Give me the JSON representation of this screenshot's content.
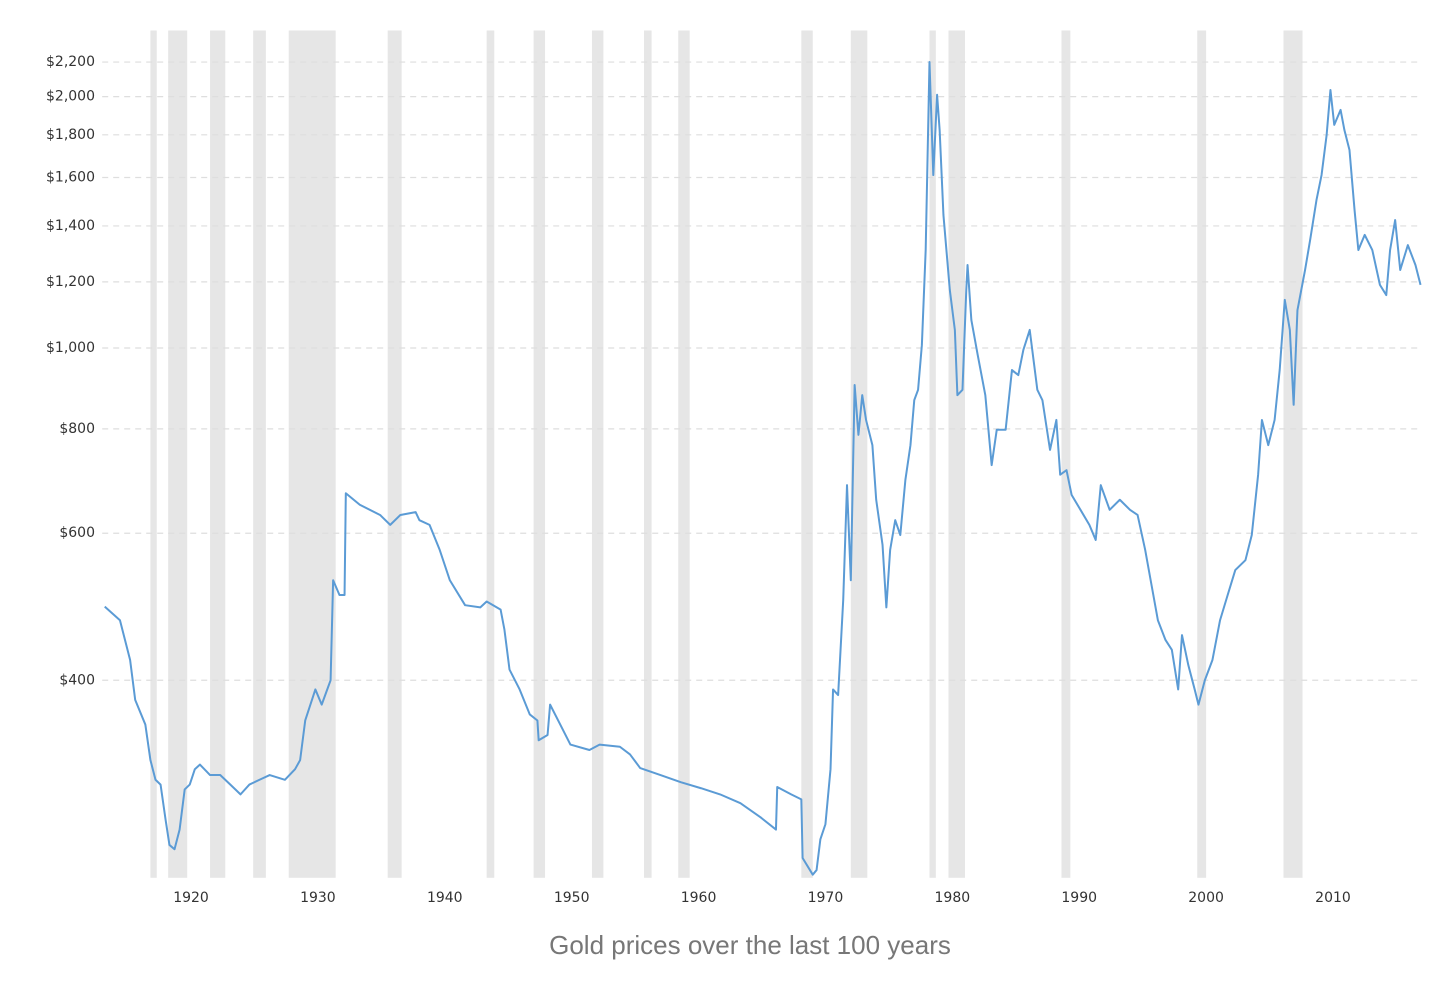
{
  "chart_data": {
    "type": "line",
    "title": "Gold prices over the last 100 years",
    "log_scale": true,
    "grid": true,
    "xlim": [
      1913,
      2017
    ],
    "ylim": [
      232,
      2400
    ],
    "xticks": [
      1920,
      1930,
      1940,
      1950,
      1960,
      1970,
      1980,
      1990,
      2000,
      2010
    ],
    "yticks": [
      {
        "value": 400,
        "label": "$400"
      },
      {
        "value": 600,
        "label": "$600"
      },
      {
        "value": 800,
        "label": "$800"
      },
      {
        "value": 1000,
        "label": "$1,000"
      },
      {
        "value": 1200,
        "label": "$1,200"
      },
      {
        "value": 1400,
        "label": "$1,400"
      },
      {
        "value": 1600,
        "label": "$1,600"
      },
      {
        "value": 1800,
        "label": "$1,800"
      },
      {
        "value": 2000,
        "label": "$2,000"
      },
      {
        "value": 2200,
        "label": "$2,200"
      }
    ],
    "shaded_periods": [
      [
        1916.8,
        1917.3
      ],
      [
        1918.2,
        1919.7
      ],
      [
        1921.5,
        1922.7
      ],
      [
        1924.9,
        1925.9
      ],
      [
        1927.7,
        1931.4
      ],
      [
        1935.5,
        1936.6
      ],
      [
        1943.3,
        1943.9
      ],
      [
        1947.0,
        1947.9
      ],
      [
        1951.6,
        1952.5
      ],
      [
        1955.7,
        1956.3
      ],
      [
        1958.4,
        1959.3
      ],
      [
        1968.1,
        1969.0
      ],
      [
        1972.0,
        1973.3
      ],
      [
        1978.2,
        1978.7
      ],
      [
        1979.7,
        1981.0
      ],
      [
        1988.6,
        1989.3
      ],
      [
        1999.3,
        2000.0
      ],
      [
        2006.1,
        2007.6
      ]
    ],
    "shade_color": "#e6e6e6",
    "series": [
      {
        "color": "#5b9bd5",
        "x": [
          1913.2,
          1914.4,
          1915.2,
          1915.6,
          1916.4,
          1916.8,
          1917.2,
          1917.6,
          1918.0,
          1918.3,
          1918.7,
          1919.1,
          1919.5,
          1919.9,
          1920.3,
          1920.7,
          1921.5,
          1922.3,
          1923.1,
          1923.9,
          1924.6,
          1925.4,
          1926.2,
          1927.4,
          1928.2,
          1928.6,
          1929.0,
          1929.8,
          1930.3,
          1931.0,
          1931.2,
          1931.7,
          1932.1,
          1932.2,
          1933.3,
          1934.9,
          1935.7,
          1936.5,
          1937.7,
          1938.0,
          1938.8,
          1939.6,
          1940.4,
          1941.6,
          1942.8,
          1943.3,
          1944.4,
          1944.7,
          1945.1,
          1945.9,
          1946.7,
          1947.3,
          1947.4,
          1948.1,
          1948.3,
          1949.1,
          1949.9,
          1951.4,
          1952.2,
          1953.8,
          1954.6,
          1955.4,
          1957.0,
          1958.6,
          1960.2,
          1961.7,
          1963.3,
          1964.9,
          1966.1,
          1966.2,
          1967.3,
          1968.1,
          1968.2,
          1969.0,
          1969.3,
          1969.6,
          1970.0,
          1970.4,
          1970.6,
          1971.0,
          1971.4,
          1971.7,
          1972.0,
          1972.3,
          1972.6,
          1972.9,
          1973.2,
          1973.7,
          1974.0,
          1974.5,
          1974.8,
          1975.1,
          1975.5,
          1975.9,
          1976.3,
          1976.7,
          1977.0,
          1977.3,
          1977.6,
          1977.9,
          1978.2,
          1978.5,
          1978.8,
          1979.0,
          1979.3,
          1979.8,
          1980.2,
          1980.4,
          1980.8,
          1981.1,
          1981.2,
          1981.5,
          1982.0,
          1982.6,
          1983.1,
          1983.5,
          1984.2,
          1984.7,
          1985.2,
          1985.6,
          1986.1,
          1986.7,
          1987.1,
          1987.7,
          1988.2,
          1988.5,
          1989.0,
          1989.4,
          1990.1,
          1990.8,
          1991.3,
          1991.7,
          1992.4,
          1993.2,
          1994.0,
          1994.6,
          1995.2,
          1995.7,
          1996.2,
          1996.8,
          1997.3,
          1997.8,
          1998.1,
          1998.6,
          1999.1,
          1999.4,
          1999.9,
          2000.5,
          2001.1,
          2001.7,
          2002.3,
          2003.1,
          2003.6,
          2004.1,
          2004.4,
          2004.9,
          2005.4,
          2005.8,
          2006.2,
          2006.6,
          2006.9,
          2007.2,
          2007.8,
          2008.2,
          2008.7,
          2009.1,
          2009.5,
          2009.8,
          2010.1,
          2010.6,
          2010.9,
          2011.3,
          2011.7,
          2012.0,
          2012.5,
          2013.1,
          2013.7,
          2014.2,
          2014.5,
          2014.9,
          2015.3,
          2015.9,
          2016.5,
          2016.9
        ],
        "values": [
          490,
          472,
          423,
          379,
          354,
          321,
          304,
          300,
          272,
          254,
          251,
          265,
          296,
          300,
          313,
          317,
          308,
          308,
          300,
          292,
          300,
          304,
          308,
          304,
          313,
          321,
          358,
          390,
          374,
          400,
          527,
          506,
          506,
          670,
          649,
          631,
          614,
          631,
          636,
          622,
          614,
          573,
          527,
          492,
          489,
          497,
          486,
          460,
          412,
          390,
          364,
          358,
          339,
          344,
          374,
          354,
          335,
          330,
          335,
          333,
          326,
          314,
          308,
          302,
          297,
          292,
          285,
          274,
          265,
          298,
          292,
          288,
          245,
          234,
          237,
          258,
          269,
          313,
          390,
          384,
          499,
          685,
          527,
          903,
          787,
          878,
          820,
          765,
          658,
          581,
          489,
          573,
          622,
          597,
          695,
          765,
          866,
          891,
          1008,
          1310,
          2200,
          1611,
          2010,
          1824,
          1443,
          1174,
          1051,
          878,
          891,
          1174,
          1257,
          1080,
          981,
          878,
          724,
          798,
          798,
          941,
          928,
          995,
          1051,
          891,
          866,
          755,
          820,
          705,
          714,
          667,
          640,
          614,
          589,
          685,
          640,
          658,
          640,
          631,
          573,
          520,
          472,
          447,
          435,
          390,
          453,
          417,
          390,
          374,
          400,
          423,
          472,
          506,
          542,
          557,
          597,
          705,
          820,
          765,
          820,
          941,
          1142,
          1051,
          855,
          1110,
          1240,
          1347,
          1504,
          1611,
          1800,
          2037,
          1850,
          1928,
          1824,
          1726,
          1463,
          1310,
          1366,
          1310,
          1190,
          1157,
          1310,
          1423,
          1240,
          1328,
          1257,
          1190
        ]
      }
    ]
  }
}
